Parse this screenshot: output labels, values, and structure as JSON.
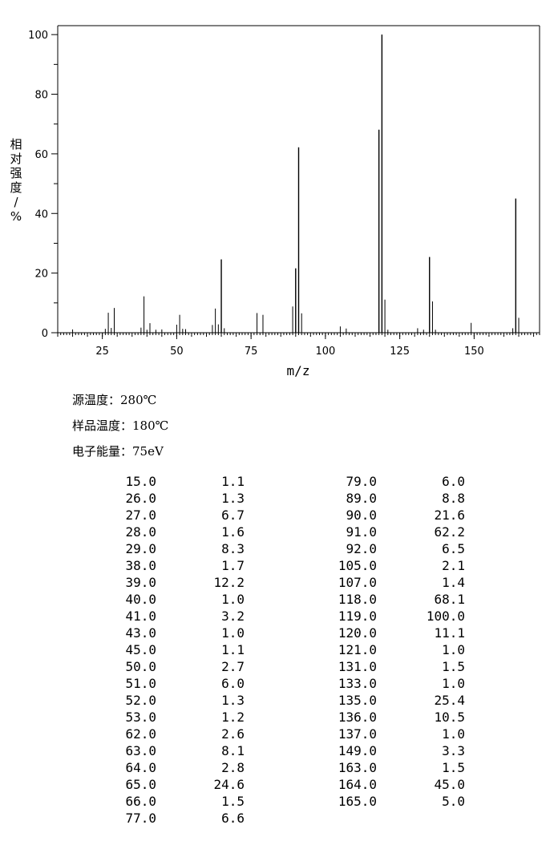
{
  "chart_data": {
    "type": "bar",
    "xlabel": "m/z",
    "ylabel": "相对强度/%",
    "xlim": [
      10,
      172
    ],
    "ylim": [
      0,
      103
    ],
    "x_ticks": [
      25,
      50,
      75,
      100,
      125,
      150
    ],
    "y_ticks": [
      0,
      20,
      40,
      60,
      80,
      100
    ],
    "grid": false,
    "peaks": [
      {
        "mz": 15.0,
        "intensity": 1.1
      },
      {
        "mz": 26.0,
        "intensity": 1.3
      },
      {
        "mz": 27.0,
        "intensity": 6.7
      },
      {
        "mz": 28.0,
        "intensity": 1.6
      },
      {
        "mz": 29.0,
        "intensity": 8.3
      },
      {
        "mz": 38.0,
        "intensity": 1.7
      },
      {
        "mz": 39.0,
        "intensity": 12.2
      },
      {
        "mz": 40.0,
        "intensity": 1.0
      },
      {
        "mz": 41.0,
        "intensity": 3.2
      },
      {
        "mz": 43.0,
        "intensity": 1.0
      },
      {
        "mz": 45.0,
        "intensity": 1.1
      },
      {
        "mz": 50.0,
        "intensity": 2.7
      },
      {
        "mz": 51.0,
        "intensity": 6.0
      },
      {
        "mz": 52.0,
        "intensity": 1.3
      },
      {
        "mz": 53.0,
        "intensity": 1.2
      },
      {
        "mz": 62.0,
        "intensity": 2.6
      },
      {
        "mz": 63.0,
        "intensity": 8.1
      },
      {
        "mz": 64.0,
        "intensity": 2.8
      },
      {
        "mz": 65.0,
        "intensity": 24.6
      },
      {
        "mz": 66.0,
        "intensity": 1.5
      },
      {
        "mz": 77.0,
        "intensity": 6.6
      },
      {
        "mz": 79.0,
        "intensity": 6.0
      },
      {
        "mz": 89.0,
        "intensity": 8.8
      },
      {
        "mz": 90.0,
        "intensity": 21.6
      },
      {
        "mz": 91.0,
        "intensity": 62.2
      },
      {
        "mz": 92.0,
        "intensity": 6.5
      },
      {
        "mz": 105.0,
        "intensity": 2.1
      },
      {
        "mz": 107.0,
        "intensity": 1.4
      },
      {
        "mz": 118.0,
        "intensity": 68.1
      },
      {
        "mz": 119.0,
        "intensity": 100.0
      },
      {
        "mz": 120.0,
        "intensity": 11.1
      },
      {
        "mz": 121.0,
        "intensity": 1.0
      },
      {
        "mz": 131.0,
        "intensity": 1.5
      },
      {
        "mz": 133.0,
        "intensity": 1.0
      },
      {
        "mz": 135.0,
        "intensity": 25.4
      },
      {
        "mz": 136.0,
        "intensity": 10.5
      },
      {
        "mz": 137.0,
        "intensity": 1.0
      },
      {
        "mz": 149.0,
        "intensity": 3.3
      },
      {
        "mz": 163.0,
        "intensity": 1.5
      },
      {
        "mz": 164.0,
        "intensity": 45.0
      },
      {
        "mz": 165.0,
        "intensity": 5.0
      }
    ]
  },
  "conditions": [
    "源温度：280℃",
    "样品温度：180℃",
    "电子能量：75eV"
  ],
  "peak_table": {
    "left": [
      [
        "15.0",
        "1.1"
      ],
      [
        "26.0",
        "1.3"
      ],
      [
        "27.0",
        "6.7"
      ],
      [
        "28.0",
        "1.6"
      ],
      [
        "29.0",
        "8.3"
      ],
      [
        "38.0",
        "1.7"
      ],
      [
        "39.0",
        "12.2"
      ],
      [
        "40.0",
        "1.0"
      ],
      [
        "41.0",
        "3.2"
      ],
      [
        "43.0",
        "1.0"
      ],
      [
        "45.0",
        "1.1"
      ],
      [
        "50.0",
        "2.7"
      ],
      [
        "51.0",
        "6.0"
      ],
      [
        "52.0",
        "1.3"
      ],
      [
        "53.0",
        "1.2"
      ],
      [
        "62.0",
        "2.6"
      ],
      [
        "63.0",
        "8.1"
      ],
      [
        "64.0",
        "2.8"
      ],
      [
        "65.0",
        "24.6"
      ],
      [
        "66.0",
        "1.5"
      ],
      [
        "77.0",
        "6.6"
      ]
    ],
    "right": [
      [
        "79.0",
        "6.0"
      ],
      [
        "89.0",
        "8.8"
      ],
      [
        "90.0",
        "21.6"
      ],
      [
        "91.0",
        "62.2"
      ],
      [
        "92.0",
        "6.5"
      ],
      [
        "105.0",
        "2.1"
      ],
      [
        "107.0",
        "1.4"
      ],
      [
        "118.0",
        "68.1"
      ],
      [
        "119.0",
        "100.0"
      ],
      [
        "120.0",
        "11.1"
      ],
      [
        "121.0",
        "1.0"
      ],
      [
        "131.0",
        "1.5"
      ],
      [
        "133.0",
        "1.0"
      ],
      [
        "135.0",
        "25.4"
      ],
      [
        "136.0",
        "10.5"
      ],
      [
        "137.0",
        "1.0"
      ],
      [
        "149.0",
        "3.3"
      ],
      [
        "163.0",
        "1.5"
      ],
      [
        "164.0",
        "45.0"
      ],
      [
        "165.0",
        "5.0"
      ]
    ]
  }
}
